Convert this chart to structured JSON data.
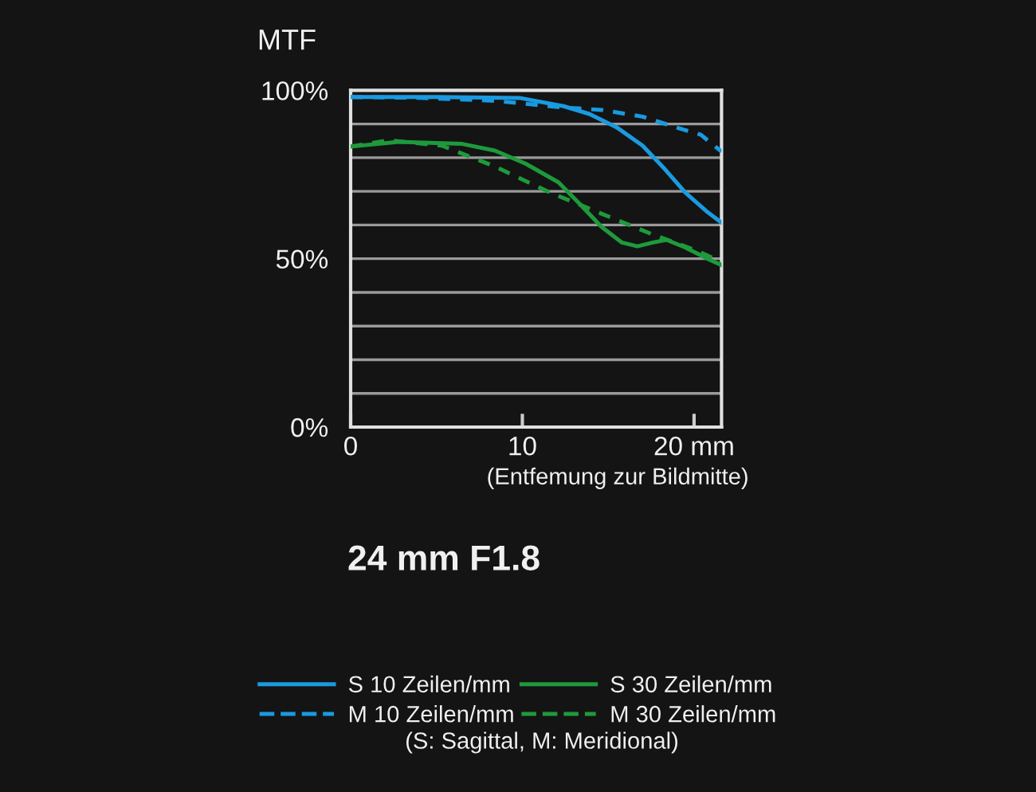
{
  "chart_data": {
    "type": "line",
    "title": "24 mm F1.8",
    "ylabel": "MTF",
    "xlabel": "(Entfemung zur Bildmitte)",
    "annotations": [
      "(S: Sagittal, M: Meridional)"
    ],
    "xlim": [
      0,
      21.6
    ],
    "ylim": [
      0,
      100
    ],
    "xticks": [
      0,
      10,
      {
        "value": 20,
        "label": "20 mm"
      }
    ],
    "yticks": [
      {
        "value": 0,
        "label": "0%"
      },
      {
        "value": 10,
        "label": null
      },
      {
        "value": 20,
        "label": null
      },
      {
        "value": 30,
        "label": null
      },
      {
        "value": 40,
        "label": null
      },
      {
        "value": 50,
        "label": "50%"
      },
      {
        "value": 60,
        "label": null
      },
      {
        "value": 70,
        "label": null
      },
      {
        "value": 80,
        "label": null
      },
      {
        "value": 90,
        "label": null
      },
      {
        "value": 100,
        "label": "100%"
      }
    ],
    "grid": "y",
    "legend": "bottom",
    "marker": "none",
    "series": [
      {
        "name": "S 10 Zeilen/mm",
        "color": "#1a9ae0",
        "line_style": "solid",
        "x": [
          0,
          5,
          9.9,
          12.4,
          13.9,
          15.5,
          17,
          18.3,
          19.5,
          20.7,
          21.6
        ],
        "values": [
          98,
          98,
          97.7,
          95.3,
          93,
          89,
          83.6,
          76.6,
          69.6,
          64.2,
          60.7
        ]
      },
      {
        "name": "S 30 Zeilen/mm",
        "color": "#1e9a3c",
        "line_style": "solid",
        "x": [
          0,
          2.8,
          6.5,
          8.4,
          10.2,
          12.1,
          13.3,
          14.6,
          15.8,
          16.7,
          17.6,
          18.4,
          19.5,
          20.7,
          21.6
        ],
        "values": [
          83.3,
          84.7,
          84.1,
          82.1,
          78.2,
          72.7,
          66.5,
          59.5,
          54.8,
          53.7,
          54.8,
          55.6,
          53.3,
          50.2,
          48.1
        ]
      },
      {
        "name": "M 10 Zeilen/mm",
        "color": "#1a9ae0",
        "line_style": "dashed",
        "x": [
          0,
          4,
          8.4,
          12.4,
          14.6,
          17,
          18.9,
          20.4,
          21.6
        ],
        "values": [
          98,
          97.8,
          96.9,
          94.9,
          94.2,
          92.2,
          89.1,
          86.8,
          81.8
        ]
      },
      {
        "name": "M 30 Zeilen/mm",
        "color": "#1e9a3c",
        "line_style": "dashed",
        "x": [
          0,
          2.2,
          5.3,
          8.4,
          11.5,
          14.6,
          17.6,
          20.1,
          21.6
        ],
        "values": [
          83.3,
          85.2,
          83.6,
          77.4,
          69.9,
          63.4,
          57.2,
          52.5,
          49.1
        ]
      }
    ]
  }
}
